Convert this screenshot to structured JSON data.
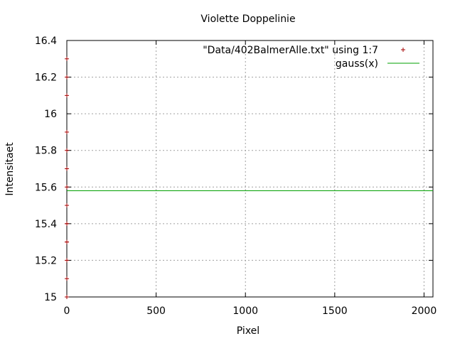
{
  "chart_data": {
    "type": "scatter",
    "title": "Violette Doppelinie",
    "xlabel": "Pixel",
    "ylabel": "Intensitaet",
    "xlim": [
      0,
      2050
    ],
    "ylim": [
      15,
      16.4
    ],
    "grid": true,
    "legend_position": "top-right",
    "x_ticks": [
      0,
      500,
      1000,
      1500,
      2000
    ],
    "x_tick_labels": [
      "0",
      "500",
      "1000",
      "1500",
      "2000"
    ],
    "y_ticks": [
      15,
      15.2,
      15.4,
      15.6,
      15.8,
      16,
      16.2,
      16.4
    ],
    "y_tick_labels": [
      "15",
      "15.2",
      "15.4",
      "15.6",
      "15.8",
      "16",
      "16.2",
      "16.4"
    ],
    "series": [
      {
        "name": "\"Data/402BalmerAlle.txt\" using 1:7",
        "kind": "points",
        "marker": "plus",
        "color": "#a50000",
        "x": [
          0,
          0,
          0,
          0,
          0,
          0,
          0,
          0,
          0,
          0,
          0,
          0,
          0,
          0,
          0
        ],
        "y": [
          15,
          15.1,
          15.2,
          15.3,
          15.3,
          15.4,
          15.4,
          15.5,
          15.6,
          15.7,
          15.8,
          15.9,
          16.1,
          16.2,
          16.3
        ]
      },
      {
        "name": "gauss(x)",
        "kind": "line",
        "color": "#00a000",
        "x": [
          0,
          2050
        ],
        "y": [
          15.58,
          15.58
        ]
      }
    ]
  }
}
